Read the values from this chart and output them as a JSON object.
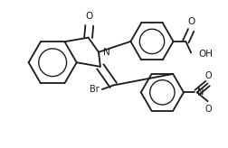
{
  "bg_color": "#ffffff",
  "line_color": "#1a1a1a",
  "lw": 1.3,
  "dbo": 0.016,
  "figsize": [
    2.53,
    1.64
  ],
  "dpi": 100,
  "xlim": [
    0,
    253
  ],
  "ylim": [
    0,
    164
  ]
}
